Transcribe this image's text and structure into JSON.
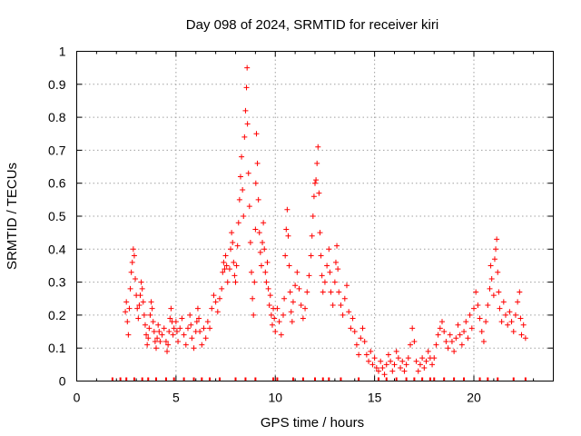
{
  "chart_data": {
    "type": "scatter",
    "title": "Day 098 of 2024, SRMTID for receiver kiri",
    "xlabel": "GPS time / hours",
    "ylabel": "SRMTID / TECUs",
    "xlim": [
      0,
      24
    ],
    "ylim": [
      0,
      1
    ],
    "xticks": [
      0,
      5,
      10,
      15,
      20
    ],
    "xtick_labels": [
      "0",
      "5",
      "10",
      "15",
      "20"
    ],
    "yticks": [
      0,
      0.1,
      0.2,
      0.3,
      0.4,
      0.5,
      0.6,
      0.7,
      0.8,
      0.9,
      1
    ],
    "ytick_labels": [
      "0",
      "0.1",
      "0.2",
      "0.3",
      "0.4",
      "0.5",
      "0.6",
      "0.7",
      "0.8",
      "0.9",
      "1"
    ],
    "grid": true,
    "color": "#ff0000",
    "marker": "plus",
    "series": [
      {
        "name": "SRMTID",
        "points": [
          [
            2.45,
            0.21
          ],
          [
            2.5,
            0.24
          ],
          [
            2.55,
            0.18
          ],
          [
            2.6,
            0.14
          ],
          [
            2.65,
            0.22
          ],
          [
            2.7,
            0.28
          ],
          [
            2.75,
            0.33
          ],
          [
            2.8,
            0.36
          ],
          [
            2.85,
            0.4
          ],
          [
            2.9,
            0.38
          ],
          [
            2.95,
            0.31
          ],
          [
            3.0,
            0.26
          ],
          [
            3.05,
            0.22
          ],
          [
            3.1,
            0.19
          ],
          [
            3.15,
            0.23
          ],
          [
            3.2,
            0.26
          ],
          [
            3.25,
            0.3
          ],
          [
            3.3,
            0.28
          ],
          [
            3.35,
            0.24
          ],
          [
            3.4,
            0.2
          ],
          [
            3.45,
            0.17
          ],
          [
            3.5,
            0.14
          ],
          [
            3.55,
            0.11
          ],
          [
            3.6,
            0.13
          ],
          [
            3.65,
            0.16
          ],
          [
            3.7,
            0.2
          ],
          [
            3.75,
            0.24
          ],
          [
            3.8,
            0.22
          ],
          [
            3.85,
            0.18
          ],
          [
            3.9,
            0.15
          ],
          [
            3.95,
            0.12
          ],
          [
            4.0,
            0.1
          ],
          [
            4.05,
            0.13
          ],
          [
            4.1,
            0.17
          ],
          [
            4.15,
            0.15
          ],
          [
            4.2,
            0.12
          ],
          [
            4.3,
            0.14
          ],
          [
            4.4,
            0.16
          ],
          [
            4.5,
            0.12
          ],
          [
            4.55,
            0.09
          ],
          [
            4.6,
            0.11
          ],
          [
            4.65,
            0.15
          ],
          [
            4.7,
            0.19
          ],
          [
            4.75,
            0.22
          ],
          [
            4.8,
            0.18
          ],
          [
            4.85,
            0.14
          ],
          [
            4.9,
            0.16
          ],
          [
            5.0,
            0.18
          ],
          [
            5.05,
            0.15
          ],
          [
            5.1,
            0.12
          ],
          [
            5.2,
            0.16
          ],
          [
            5.3,
            0.19
          ],
          [
            5.4,
            0.14
          ],
          [
            5.5,
            0.11
          ],
          [
            5.6,
            0.16
          ],
          [
            5.7,
            0.2
          ],
          [
            5.75,
            0.17
          ],
          [
            5.8,
            0.13
          ],
          [
            5.9,
            0.1
          ],
          [
            6.0,
            0.15
          ],
          [
            6.05,
            0.18
          ],
          [
            6.1,
            0.22
          ],
          [
            6.15,
            0.19
          ],
          [
            6.2,
            0.15
          ],
          [
            6.3,
            0.11
          ],
          [
            6.4,
            0.16
          ],
          [
            6.5,
            0.13
          ],
          [
            6.6,
            0.18
          ],
          [
            6.7,
            0.16
          ],
          [
            6.8,
            0.22
          ],
          [
            6.9,
            0.26
          ],
          [
            7.0,
            0.24
          ],
          [
            7.1,
            0.21
          ],
          [
            7.2,
            0.25
          ],
          [
            7.3,
            0.28
          ],
          [
            7.35,
            0.33
          ],
          [
            7.4,
            0.36
          ],
          [
            7.45,
            0.34
          ],
          [
            7.5,
            0.38
          ],
          [
            7.55,
            0.35
          ],
          [
            7.6,
            0.3
          ],
          [
            7.7,
            0.34
          ],
          [
            7.75,
            0.4
          ],
          [
            7.8,
            0.45
          ],
          [
            7.85,
            0.42
          ],
          [
            7.9,
            0.36
          ],
          [
            7.95,
            0.32
          ],
          [
            8.0,
            0.3
          ],
          [
            8.05,
            0.35
          ],
          [
            8.1,
            0.41
          ],
          [
            8.15,
            0.48
          ],
          [
            8.2,
            0.55
          ],
          [
            8.25,
            0.62
          ],
          [
            8.3,
            0.68
          ],
          [
            8.35,
            0.58
          ],
          [
            8.4,
            0.5
          ],
          [
            8.45,
            0.74
          ],
          [
            8.5,
            0.82
          ],
          [
            8.55,
            0.89
          ],
          [
            8.58,
            0.95
          ],
          [
            8.6,
            0.78
          ],
          [
            8.65,
            0.63
          ],
          [
            8.7,
            0.53
          ],
          [
            8.75,
            0.42
          ],
          [
            8.8,
            0.33
          ],
          [
            8.85,
            0.25
          ],
          [
            8.9,
            0.2
          ],
          [
            8.95,
            0.3
          ],
          [
            9.0,
            0.46
          ],
          [
            9.02,
            0.6
          ],
          [
            9.05,
            0.75
          ],
          [
            9.1,
            0.66
          ],
          [
            9.15,
            0.55
          ],
          [
            9.2,
            0.45
          ],
          [
            9.25,
            0.39
          ],
          [
            9.3,
            0.35
          ],
          [
            9.35,
            0.42
          ],
          [
            9.4,
            0.48
          ],
          [
            9.45,
            0.4
          ],
          [
            9.5,
            0.33
          ],
          [
            9.55,
            0.3
          ],
          [
            9.6,
            0.36
          ],
          [
            9.65,
            0.28
          ],
          [
            9.7,
            0.23
          ],
          [
            9.75,
            0.26
          ],
          [
            9.8,
            0.2
          ],
          [
            9.85,
            0.17
          ],
          [
            9.9,
            0.22
          ],
          [
            9.95,
            0.19
          ],
          [
            10.0,
            0.15
          ],
          [
            10.1,
            0.22
          ],
          [
            10.2,
            0.18
          ],
          [
            10.3,
            0.14
          ],
          [
            10.4,
            0.2
          ],
          [
            10.45,
            0.25
          ],
          [
            10.5,
            0.38
          ],
          [
            10.55,
            0.46
          ],
          [
            10.6,
            0.52
          ],
          [
            10.65,
            0.44
          ],
          [
            10.7,
            0.35
          ],
          [
            10.75,
            0.27
          ],
          [
            10.8,
            0.21
          ],
          [
            10.85,
            0.18
          ],
          [
            10.9,
            0.24
          ],
          [
            11.0,
            0.29
          ],
          [
            11.1,
            0.33
          ],
          [
            11.2,
            0.28
          ],
          [
            11.3,
            0.23
          ],
          [
            11.4,
            0.19
          ],
          [
            11.5,
            0.22
          ],
          [
            11.6,
            0.27
          ],
          [
            11.7,
            0.32
          ],
          [
            11.8,
            0.38
          ],
          [
            11.85,
            0.44
          ],
          [
            11.9,
            0.5
          ],
          [
            11.95,
            0.56
          ],
          [
            12.0,
            0.6
          ],
          [
            12.05,
            0.61
          ],
          [
            12.1,
            0.66
          ],
          [
            12.15,
            0.71
          ],
          [
            12.2,
            0.57
          ],
          [
            12.25,
            0.45
          ],
          [
            12.3,
            0.38
          ],
          [
            12.35,
            0.32
          ],
          [
            12.4,
            0.27
          ],
          [
            12.5,
            0.3
          ],
          [
            12.6,
            0.35
          ],
          [
            12.7,
            0.4
          ],
          [
            12.75,
            0.33
          ],
          [
            12.8,
            0.27
          ],
          [
            12.9,
            0.23
          ],
          [
            13.0,
            0.3
          ],
          [
            13.05,
            0.36
          ],
          [
            13.1,
            0.41
          ],
          [
            13.15,
            0.34
          ],
          [
            13.2,
            0.27
          ],
          [
            13.3,
            0.23
          ],
          [
            13.4,
            0.2
          ],
          [
            13.5,
            0.25
          ],
          [
            13.6,
            0.29
          ],
          [
            13.7,
            0.21
          ],
          [
            13.8,
            0.16
          ],
          [
            13.9,
            0.19
          ],
          [
            14.0,
            0.15
          ],
          [
            14.1,
            0.11
          ],
          [
            14.2,
            0.08
          ],
          [
            14.3,
            0.13
          ],
          [
            14.4,
            0.16
          ],
          [
            14.5,
            0.12
          ],
          [
            14.6,
            0.08
          ],
          [
            14.7,
            0.06
          ],
          [
            14.8,
            0.09
          ],
          [
            14.9,
            0.05
          ],
          [
            15.0,
            0.07
          ],
          [
            15.1,
            0.04
          ],
          [
            15.2,
            0.03
          ],
          [
            15.3,
            0.06
          ],
          [
            15.4,
            0.04
          ],
          [
            15.5,
            0.02
          ],
          [
            15.6,
            0.05
          ],
          [
            15.7,
            0.08
          ],
          [
            15.8,
            0.06
          ],
          [
            15.9,
            0.03
          ],
          [
            16.0,
            0.05
          ],
          [
            16.1,
            0.09
          ],
          [
            16.2,
            0.07
          ],
          [
            16.3,
            0.04
          ],
          [
            16.4,
            0.06
          ],
          [
            16.5,
            0.03
          ],
          [
            16.6,
            0.05
          ],
          [
            16.7,
            0.07
          ],
          [
            16.8,
            0.11
          ],
          [
            16.9,
            0.16
          ],
          [
            17.0,
            0.12
          ],
          [
            17.1,
            0.06
          ],
          [
            17.2,
            0.03
          ],
          [
            17.3,
            0.05
          ],
          [
            17.4,
            0.07
          ],
          [
            17.5,
            0.04
          ],
          [
            17.6,
            0.06
          ],
          [
            17.7,
            0.09
          ],
          [
            17.8,
            0.07
          ],
          [
            17.9,
            0.05
          ],
          [
            18.0,
            0.07
          ],
          [
            18.1,
            0.11
          ],
          [
            18.2,
            0.14
          ],
          [
            18.3,
            0.16
          ],
          [
            18.4,
            0.18
          ],
          [
            18.5,
            0.15
          ],
          [
            18.6,
            0.12
          ],
          [
            18.7,
            0.1
          ],
          [
            18.8,
            0.14
          ],
          [
            18.9,
            0.12
          ],
          [
            19.0,
            0.09
          ],
          [
            19.1,
            0.13
          ],
          [
            19.2,
            0.17
          ],
          [
            19.3,
            0.14
          ],
          [
            19.4,
            0.11
          ],
          [
            19.5,
            0.15
          ],
          [
            19.6,
            0.18
          ],
          [
            19.7,
            0.13
          ],
          [
            19.8,
            0.2
          ],
          [
            19.9,
            0.16
          ],
          [
            20.0,
            0.22
          ],
          [
            20.1,
            0.27
          ],
          [
            20.2,
            0.23
          ],
          [
            20.3,
            0.19
          ],
          [
            20.4,
            0.15
          ],
          [
            20.5,
            0.12
          ],
          [
            20.6,
            0.18
          ],
          [
            20.7,
            0.23
          ],
          [
            20.8,
            0.28
          ],
          [
            20.85,
            0.35
          ],
          [
            20.9,
            0.31
          ],
          [
            21.0,
            0.26
          ],
          [
            21.05,
            0.37
          ],
          [
            21.1,
            0.4
          ],
          [
            21.15,
            0.43
          ],
          [
            21.2,
            0.33
          ],
          [
            21.25,
            0.27
          ],
          [
            21.3,
            0.22
          ],
          [
            21.4,
            0.18
          ],
          [
            21.5,
            0.24
          ],
          [
            21.6,
            0.2
          ],
          [
            21.7,
            0.17
          ],
          [
            21.8,
            0.21
          ],
          [
            21.9,
            0.18
          ],
          [
            22.0,
            0.15
          ],
          [
            22.1,
            0.2
          ],
          [
            22.2,
            0.24
          ],
          [
            22.3,
            0.27
          ],
          [
            22.35,
            0.19
          ],
          [
            22.4,
            0.14
          ],
          [
            22.5,
            0.17
          ],
          [
            22.6,
            0.13
          ]
        ]
      }
    ],
    "zero_markers_x": [
      1.8,
      2.2,
      2.5,
      2.9,
      3.3,
      3.6,
      4.0,
      4.5,
      4.9,
      5.4,
      5.9,
      6.3,
      6.7,
      7.2,
      8.0,
      8.5,
      9.0,
      9.9,
      10.1,
      10.9,
      11.4,
      12.0,
      12.4,
      12.7,
      13.3,
      14.2,
      15.2,
      15.6,
      16.1,
      16.6,
      17.0,
      17.4,
      17.8,
      18.0,
      18.5,
      19.0,
      19.5,
      20.3,
      20.7,
      21.2,
      22.0,
      22.6
    ]
  }
}
